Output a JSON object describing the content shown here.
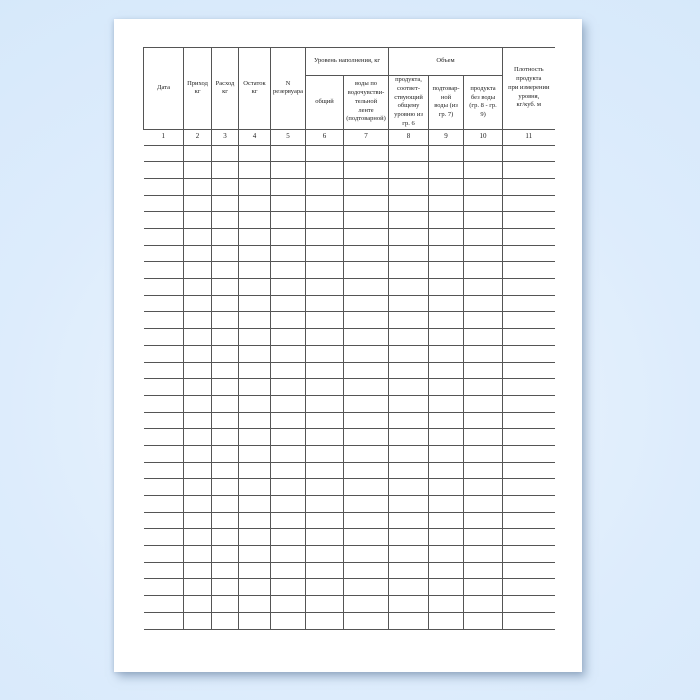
{
  "page": {
    "background_color": "#d5e8fa",
    "paper_color": "#ffffff",
    "border_color": "#555555",
    "text_color": "#1a1a1a"
  },
  "table": {
    "group_headers": [
      {
        "label": "Уровень наполнения, кг",
        "spans_columns": "6-7"
      },
      {
        "label": "Объем",
        "spans_columns": "8-10"
      }
    ],
    "columns": [
      {
        "num": "1",
        "label": "Дата"
      },
      {
        "num": "2",
        "label": "Приход\nкг"
      },
      {
        "num": "3",
        "label": "Расход\nкг"
      },
      {
        "num": "4",
        "label": "Остаток\nкг"
      },
      {
        "num": "5",
        "label": "N\nрезервуара"
      },
      {
        "num": "6",
        "label": "общий"
      },
      {
        "num": "7",
        "label": "воды по\nводочувстви-\nтельной\nленте\n(подтоварной)"
      },
      {
        "num": "8",
        "label": "продукта,\nсоответ-\nствующий\nобщему\nуровню из\nгр. 6"
      },
      {
        "num": "9",
        "label": "подтовар-\nной\nводы (из\nгр. 7)"
      },
      {
        "num": "10",
        "label": "продукта\nбез воды\n(гр. 8 - гр.\n9)"
      },
      {
        "num": "11",
        "label": "Плотность\nпродукта\nпри измерении\nуровня,\nкг/куб. м"
      }
    ],
    "empty_row_count": 29
  }
}
